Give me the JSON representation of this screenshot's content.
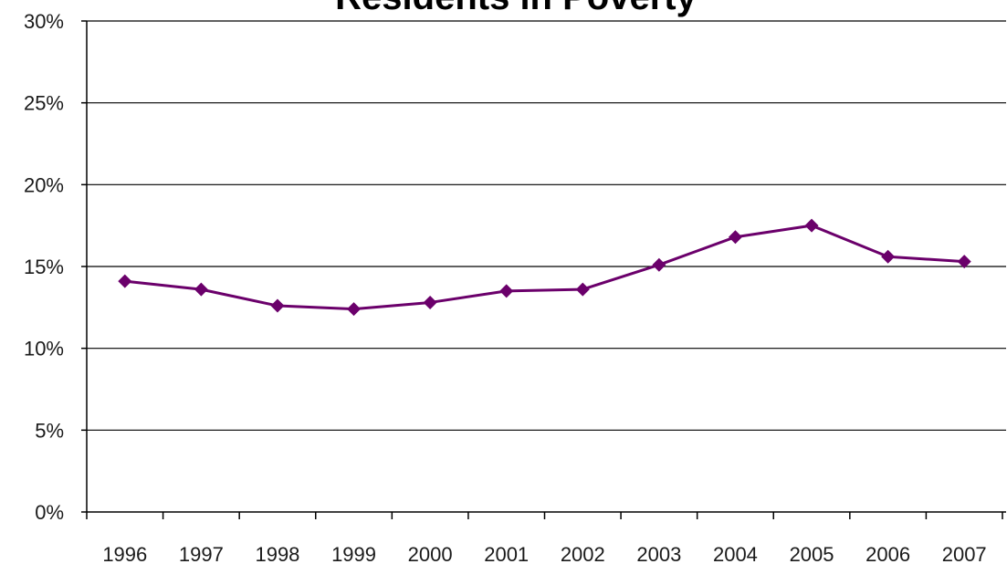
{
  "chart_data": {
    "type": "line",
    "title": "Residents in Poverty",
    "xlabel": "",
    "ylabel": "",
    "categories": [
      "1996",
      "1997",
      "1998",
      "1999",
      "2000",
      "2001",
      "2002",
      "2003",
      "2004",
      "2005",
      "2006",
      "2007"
    ],
    "series": [
      {
        "values": [
          14.1,
          13.6,
          12.6,
          12.4,
          12.8,
          13.5,
          13.6,
          15.1,
          16.8,
          17.5,
          15.6,
          15.3
        ],
        "color": "#6b006b",
        "marker": "diamond"
      }
    ],
    "ylim": [
      0,
      30
    ],
    "yticks": [
      0,
      5,
      10,
      15,
      20,
      25,
      30
    ],
    "ytick_labels": [
      "0%",
      "5%",
      "10%",
      "15%",
      "20%",
      "25%",
      "30%"
    ],
    "grid": true,
    "legend": "none"
  }
}
